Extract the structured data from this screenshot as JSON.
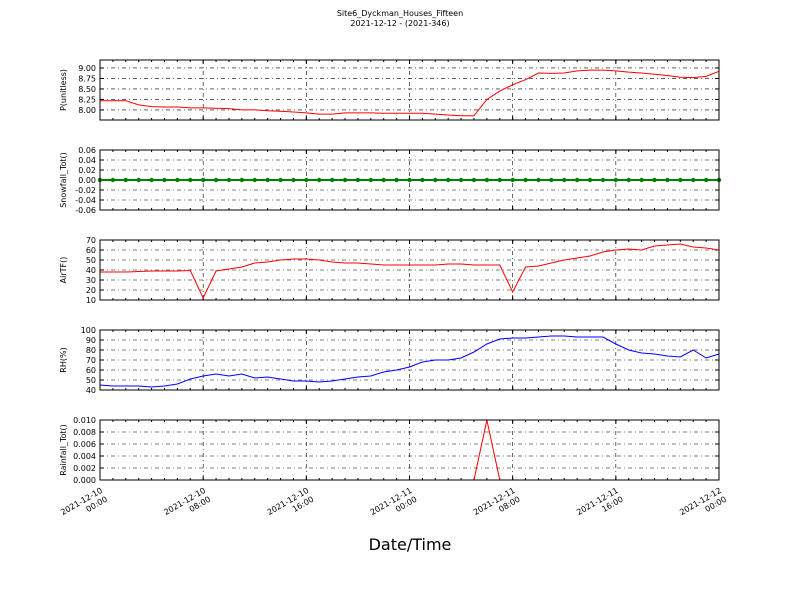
{
  "figure": {
    "title": "Site6_Dyckman_Houses_Fifteen",
    "subtitle": "2021-12-12 - (2021-346)",
    "xlabel": "Date/Time",
    "x": [
      "2021-12-10 00:00",
      "2021-12-10 01:00",
      "2021-12-10 02:00",
      "2021-12-10 03:00",
      "2021-12-10 04:00",
      "2021-12-10 05:00",
      "2021-12-10 06:00",
      "2021-12-10 07:00",
      "2021-12-10 08:00",
      "2021-12-10 09:00",
      "2021-12-10 10:00",
      "2021-12-10 11:00",
      "2021-12-10 12:00",
      "2021-12-10 13:00",
      "2021-12-10 14:00",
      "2021-12-10 15:00",
      "2021-12-10 16:00",
      "2021-12-10 17:00",
      "2021-12-10 18:00",
      "2021-12-10 19:00",
      "2021-12-10 20:00",
      "2021-12-10 21:00",
      "2021-12-10 22:00",
      "2021-12-10 23:00",
      "2021-12-11 00:00",
      "2021-12-11 01:00",
      "2021-12-11 02:00",
      "2021-12-11 03:00",
      "2021-12-11 04:00",
      "2021-12-11 05:00",
      "2021-12-11 06:00",
      "2021-12-11 07:00",
      "2021-12-11 08:00",
      "2021-12-11 09:00",
      "2021-12-11 10:00",
      "2021-12-11 11:00",
      "2021-12-11 12:00",
      "2021-12-11 13:00",
      "2021-12-11 14:00",
      "2021-12-11 15:00",
      "2021-12-11 16:00",
      "2021-12-11 17:00",
      "2021-12-11 18:00",
      "2021-12-11 19:00",
      "2021-12-11 20:00",
      "2021-12-11 21:00",
      "2021-12-11 22:00",
      "2021-12-11 23:00",
      "2021-12-12 00:00"
    ],
    "xlim": [
      "2021-12-10 00:00",
      "2021-12-12 00:00"
    ],
    "xticks": [
      "2021-12-10 00:00",
      "2021-12-10 08:00",
      "2021-12-10 16:00",
      "2021-12-11 00:00",
      "2021-12-11 08:00",
      "2021-12-11 16:00",
      "2021-12-12 00:00"
    ]
  },
  "chart_data": [
    {
      "type": "line",
      "ylabel": "P(unitless)",
      "ylim": [
        7.76,
        9.19
      ],
      "grid": true,
      "yticks": [
        {
          "value": 8,
          "label": "8.00"
        },
        {
          "value": 8.25,
          "label": "8.25"
        },
        {
          "value": 8.5,
          "label": "8.50"
        },
        {
          "value": 8.75,
          "label": "8.75"
        },
        {
          "value": 9,
          "label": "9.00"
        }
      ],
      "series": [
        {
          "color": "#ff0000",
          "values": [
            8.22,
            8.22,
            8.22,
            8.12,
            8.08,
            8.07,
            8.07,
            8.05,
            8.05,
            8.04,
            8.03,
            8.0,
            8.0,
            7.98,
            7.97,
            7.95,
            7.93,
            7.9,
            7.9,
            7.93,
            7.93,
            7.93,
            7.92,
            7.92,
            7.92,
            7.92,
            7.9,
            7.88,
            7.86,
            7.86,
            8.25,
            8.45,
            8.6,
            8.72,
            8.88,
            8.87,
            8.88,
            8.93,
            8.95,
            8.95,
            8.93,
            8.9,
            8.88,
            8.85,
            8.82,
            8.78,
            8.77,
            8.8,
            8.92
          ]
        }
      ]
    },
    {
      "type": "line",
      "ylabel": "Snowfall_Tot()",
      "ylim": [
        -0.06,
        0.06
      ],
      "grid": true,
      "markers": true,
      "yticks": [
        -0.06,
        -0.04,
        -0.02,
        {
          "value": 0,
          "label": "0.00"
        },
        0.02,
        0.04,
        0.06
      ],
      "series": [
        {
          "color": "#008000",
          "values": [
            0,
            0,
            0,
            0,
            0,
            0,
            0,
            0,
            0,
            0,
            0,
            0,
            0,
            0,
            0,
            0,
            0,
            0,
            0,
            0,
            0,
            0,
            0,
            0,
            0,
            0,
            0,
            0,
            0,
            0,
            0,
            0,
            0,
            0,
            0,
            0,
            0,
            0,
            0,
            0,
            0,
            0,
            0,
            0,
            0,
            0,
            0,
            0,
            0
          ]
        }
      ]
    },
    {
      "type": "line",
      "ylabel": "AirTF()",
      "ylim": [
        10,
        70
      ],
      "grid": true,
      "yticks": [
        10,
        20,
        30,
        40,
        50,
        60,
        70
      ],
      "series": [
        {
          "color": "#ff0000",
          "values": [
            38,
            38,
            38,
            38.5,
            39,
            39,
            39,
            39.5,
            12,
            39,
            41,
            43,
            47,
            48,
            50,
            51,
            51,
            50,
            48,
            47,
            47,
            46,
            45,
            45,
            45,
            45,
            45,
            46,
            46,
            45,
            45,
            45,
            18,
            43,
            44,
            47,
            50,
            52,
            54,
            58,
            60,
            61,
            60,
            64,
            65,
            66,
            63,
            62,
            60
          ]
        }
      ]
    },
    {
      "type": "line",
      "ylabel": "RH(%)",
      "ylim": [
        40,
        100
      ],
      "grid": true,
      "yticks": [
        40,
        50,
        60,
        70,
        80,
        90,
        100
      ],
      "series": [
        {
          "color": "#0000ff",
          "values": [
            45,
            44,
            44,
            44,
            43,
            44,
            46,
            51,
            54,
            56,
            54,
            56,
            52,
            53,
            51,
            49,
            49,
            48,
            49,
            51,
            53,
            54,
            58,
            60,
            63,
            68,
            70,
            70,
            72,
            78,
            86,
            91,
            92,
            92,
            93,
            94,
            94,
            93,
            93,
            93,
            86,
            80,
            77,
            76,
            74,
            73,
            80,
            72,
            76
          ]
        }
      ]
    },
    {
      "type": "line",
      "ylabel": "Rainfall_Tot()",
      "ylim": [
        0,
        0.01
      ],
      "grid": true,
      "yticks": [
        {
          "value": 0,
          "label": "0.000"
        },
        {
          "value": 0.002,
          "label": "0.002"
        },
        {
          "value": 0.004,
          "label": "0.004"
        },
        {
          "value": 0.006,
          "label": "0.006"
        },
        {
          "value": 0.008,
          "label": "0.008"
        },
        {
          "value": 0.01,
          "label": "0.010"
        }
      ],
      "series": [
        {
          "color": "#ff0000",
          "values": [
            0,
            0,
            0,
            0,
            0,
            0,
            0,
            0,
            0,
            0,
            0,
            0,
            0,
            0,
            0,
            0,
            0,
            0,
            0,
            0,
            0,
            0,
            0,
            0,
            0,
            0,
            0,
            0,
            0,
            0,
            0.01,
            0,
            0,
            0,
            0,
            0,
            0,
            0,
            0,
            0,
            0,
            0,
            0,
            0,
            0,
            0,
            0,
            0,
            0
          ]
        }
      ]
    }
  ]
}
